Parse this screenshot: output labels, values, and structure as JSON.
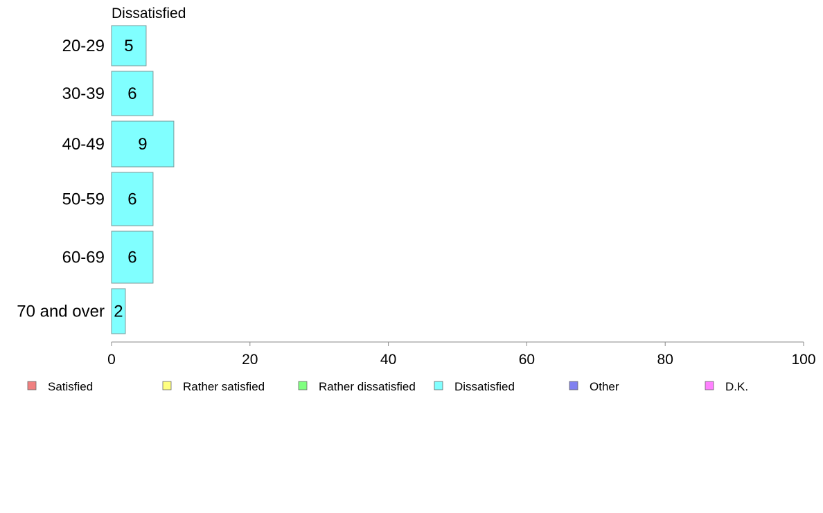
{
  "chart_data": {
    "type": "bar",
    "orientation": "horizontal",
    "title": "Dissatisfied",
    "categories": [
      "20-29",
      "30-39",
      "40-49",
      "50-59",
      "60-69",
      "70 and over"
    ],
    "series": [
      {
        "name": "Dissatisfied",
        "values": [
          5,
          6,
          9,
          6,
          6,
          2
        ],
        "color": "#80ffff"
      }
    ],
    "xlim": [
      0,
      100
    ],
    "xticks": [
      0,
      20,
      40,
      60,
      80,
      100
    ],
    "xtick_labels": [
      "0",
      "20",
      "40",
      "60",
      "80",
      "100"
    ],
    "grid": false,
    "legend_position": "bottom",
    "legend": [
      {
        "label": "Satisfied",
        "color": "#f08080"
      },
      {
        "label": "Rather satisfied",
        "color": "#ffff80"
      },
      {
        "label": "Rather dissatisfied",
        "color": "#80ff80"
      },
      {
        "label": "Dissatisfied",
        "color": "#80ffff"
      },
      {
        "label": "Other",
        "color": "#8080f0"
      },
      {
        "label": "D.K.",
        "color": "#ff80ff"
      }
    ],
    "colors": {
      "bar_stroke": "#7a9a9a",
      "axis": "#888888",
      "legend_stroke": "#666666"
    }
  }
}
